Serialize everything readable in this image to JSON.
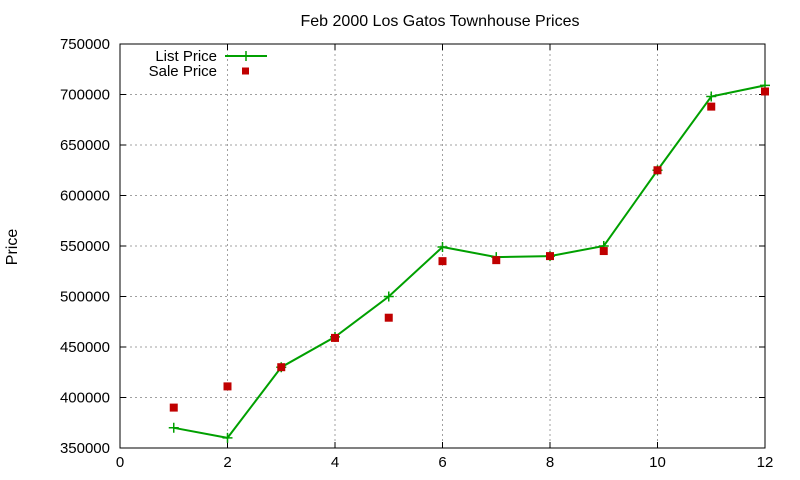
{
  "chart_data": {
    "type": "line",
    "title": "Feb 2000 Los Gatos Townhouse Prices",
    "xlabel": "",
    "ylabel": "Price",
    "xlim": [
      0,
      12
    ],
    "ylim": [
      350000,
      750000
    ],
    "x_ticks": [
      0,
      2,
      4,
      6,
      8,
      10,
      12
    ],
    "y_ticks": [
      350000,
      400000,
      450000,
      500000,
      550000,
      600000,
      650000,
      700000,
      750000
    ],
    "grid": true,
    "legend_position": "top-left",
    "series": [
      {
        "name": "List Price",
        "style": "line-with-plus-markers",
        "color": "#00a000",
        "x": [
          1,
          2,
          3,
          4,
          5,
          6,
          7,
          8,
          9,
          10,
          11,
          12
        ],
        "y": [
          370000,
          360000,
          430000,
          460000,
          500000,
          549000,
          539000,
          540000,
          550000,
          625000,
          698000,
          709000
        ]
      },
      {
        "name": "Sale Price",
        "style": "square-markers",
        "color": "#c00000",
        "x": [
          1,
          2,
          3,
          4,
          5,
          6,
          7,
          8,
          9,
          10,
          11,
          12
        ],
        "y": [
          390000,
          411000,
          430000,
          459000,
          479000,
          535000,
          536000,
          540000,
          545000,
          625000,
          688000,
          703000
        ]
      }
    ]
  }
}
